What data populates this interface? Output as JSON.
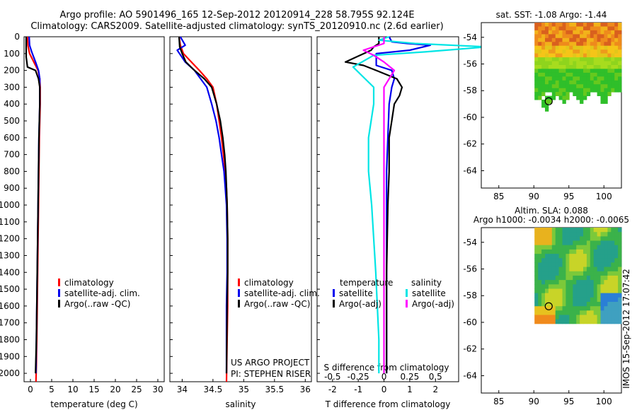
{
  "header": {
    "line1": "Argo profile: AO 5901496_165 12-Sep-2012 20120914_228 58.795S 92.124E",
    "line2": "Climatology: CARS2009. Satellite-adjusted climatology: synTS_20120910.nc (2.6d earlier)"
  },
  "depth_ticks": [
    "0",
    "100",
    "200",
    "300",
    "400",
    "500",
    "600",
    "700",
    "800",
    "900",
    "1000",
    "1100",
    "1200",
    "1300",
    "1400",
    "1500",
    "1600",
    "1700",
    "1800",
    "1900",
    "2000"
  ],
  "colors": {
    "climatology": "#ff0000",
    "satellite": "#0000ee",
    "argo": "#000000",
    "sat_salinity": "#00e5e5",
    "argo_salinity": "#ff00ff"
  },
  "chart_data": [
    {
      "id": "temperature",
      "type": "line",
      "xlabel": "temperature (deg C)",
      "xlim": [
        -1.5,
        31.5
      ],
      "ylim": [
        2050,
        0
      ],
      "xticks": [
        "0",
        "5",
        "10",
        "15",
        "20",
        "25",
        "30"
      ],
      "xtick_values": [
        0,
        5,
        10,
        15,
        20,
        25,
        30
      ],
      "legend": [
        "climatology",
        "satellite-adj. clim.",
        "Argo(..raw -QC)"
      ],
      "series": [
        {
          "name": "climatology",
          "color": "#ff0000",
          "x": [
            -0.7,
            -0.6,
            -0.2,
            0.8,
            1.8,
            2.2,
            2.3,
            2.3,
            2.2,
            2.1,
            2.0,
            1.9,
            1.8,
            1.7,
            1.6,
            1.5,
            1.4,
            1.3
          ],
          "y": [
            0,
            50,
            100,
            150,
            200,
            250,
            300,
            400,
            500,
            600,
            800,
            1000,
            1200,
            1400,
            1600,
            1800,
            1950,
            2050
          ]
        },
        {
          "name": "satellite-adj. clim.",
          "color": "#0000ee",
          "x": [
            -0.3,
            -0.2,
            0.3,
            1.2,
            1.9,
            2.2,
            2.2,
            2.2,
            2.1,
            2.0,
            1.9,
            1.8,
            1.7,
            1.6,
            1.5,
            1.4,
            1.3
          ],
          "y": [
            0,
            50,
            90,
            150,
            200,
            250,
            300,
            400,
            500,
            600,
            800,
            1000,
            1200,
            1400,
            1600,
            1800,
            2000
          ]
        },
        {
          "name": "Argo(..raw -QC)",
          "color": "#000000",
          "x": [
            -1.0,
            -1.0,
            -1.0,
            -0.7,
            1.2,
            1.9,
            2.2,
            2.2,
            2.1,
            2.0,
            1.9,
            1.8,
            1.7,
            1.6,
            1.5,
            1.4,
            1.2
          ],
          "y": [
            0,
            60,
            120,
            180,
            200,
            250,
            300,
            400,
            500,
            600,
            800,
            1000,
            1200,
            1400,
            1600,
            1800,
            2000
          ]
        }
      ]
    },
    {
      "id": "salinity",
      "type": "line",
      "xlabel": "salinity",
      "xlim": [
        33.8,
        36.1
      ],
      "ylim": [
        2050,
        0
      ],
      "xticks": [
        "34",
        "34.5",
        "35",
        "35.5",
        "36"
      ],
      "xtick_values": [
        34,
        34.5,
        35,
        35.5,
        36
      ],
      "legend": [
        "climatology",
        "satellite-adj. clim.",
        "Argo(..raw -QC)"
      ],
      "footer": [
        "US ARGO PROJECT",
        "PI: STEPHEN RISER"
      ],
      "series": [
        {
          "name": "climatology",
          "color": "#ff0000",
          "x": [
            33.95,
            33.97,
            34.02,
            34.15,
            34.28,
            34.4,
            34.5,
            34.56,
            34.6,
            34.64,
            34.67,
            34.7,
            34.72,
            34.73,
            34.74,
            34.74,
            34.74,
            34.73,
            34.72
          ],
          "y": [
            0,
            50,
            100,
            150,
            200,
            250,
            300,
            400,
            500,
            600,
            700,
            800,
            900,
            1000,
            1200,
            1400,
            1600,
            1800,
            2050
          ]
        },
        {
          "name": "satellite-adj. clim.",
          "color": "#0000ee",
          "x": [
            33.97,
            34.05,
            33.92,
            34.05,
            34.2,
            34.3,
            34.4,
            34.48,
            34.55,
            34.6,
            34.64,
            34.68,
            34.7,
            34.72,
            34.73,
            34.73,
            34.72,
            34.72
          ],
          "y": [
            0,
            50,
            80,
            150,
            200,
            250,
            300,
            400,
            500,
            600,
            700,
            800,
            900,
            1000,
            1200,
            1400,
            1600,
            2000
          ]
        },
        {
          "name": "Argo(..raw -QC)",
          "color": "#000000",
          "x": [
            33.95,
            33.96,
            34.0,
            34.06,
            34.2,
            34.36,
            34.48,
            34.56,
            34.62,
            34.66,
            34.69,
            34.71,
            34.72,
            34.73,
            34.74,
            34.74,
            34.73,
            34.72
          ],
          "y": [
            0,
            60,
            100,
            150,
            200,
            250,
            300,
            400,
            500,
            600,
            700,
            800,
            900,
            1000,
            1200,
            1400,
            1600,
            2000
          ]
        }
      ]
    },
    {
      "id": "difference",
      "type": "line",
      "xlabel": "T difference from climatology",
      "xlabel2": "S difference from climatology",
      "xlim": [
        -2.6,
        2.9
      ],
      "ylim": [
        2050,
        0
      ],
      "xticks": [
        "-2",
        "-1",
        "0",
        "1",
        "2"
      ],
      "xtick_values": [
        -2,
        -1,
        0,
        1,
        2
      ],
      "xticks_s": [
        "-0.5",
        "-0.25",
        "0",
        "0.25",
        "0.5"
      ],
      "xtick_s_values": [
        -0.5,
        -0.25,
        0,
        0.25,
        0.5
      ],
      "legend_titles": [
        "temperature",
        "salinity"
      ],
      "legend": [
        "satellite",
        "Argo(-adj)",
        "satellite",
        "Argo(-adj)"
      ],
      "series": [
        {
          "name": "satellite",
          "quantity": "temperature",
          "color": "#0000ee",
          "x": [
            0.2,
            0.3,
            0.9,
            1.8,
            1.0,
            -0.3,
            -0.3,
            0.3,
            0.4,
            0.3,
            0.2,
            0.15,
            0.1,
            0.1,
            0.1,
            0.1,
            0.1
          ],
          "y": [
            0,
            30,
            40,
            50,
            80,
            100,
            170,
            200,
            250,
            300,
            400,
            600,
            800,
            1000,
            1400,
            1800,
            2000
          ]
        },
        {
          "name": "Argo(-adj)",
          "quantity": "temperature",
          "color": "#000000",
          "x": [
            -0.2,
            -0.2,
            -0.4,
            -0.5,
            -1.5,
            -0.8,
            -0.3,
            0.5,
            0.7,
            0.6,
            0.4,
            0.3,
            0.2,
            0.2,
            0.15,
            0.1,
            0.1
          ],
          "y": [
            0,
            40,
            60,
            80,
            150,
            170,
            200,
            250,
            300,
            350,
            400,
            500,
            600,
            800,
            1000,
            1400,
            2000
          ]
        },
        {
          "name": "satellite",
          "quantity": "salinity",
          "color": "#00e5e5",
          "x": [
            0.05,
            -0.05,
            0.3,
            1.0,
            0.4,
            -0.1,
            -0.3,
            -0.1,
            -0.1,
            -0.15,
            -0.15,
            -0.12,
            -0.1,
            -0.08,
            -0.05,
            -0.05
          ],
          "y": [
            0,
            20,
            40,
            60,
            90,
            110,
            180,
            300,
            400,
            600,
            800,
            1000,
            1200,
            1400,
            1800,
            2000
          ]
        },
        {
          "name": "Argo(-adj)",
          "quantity": "salinity",
          "color": "#ff00ff",
          "x": [
            0.0,
            0.0,
            -0.2,
            -0.1,
            0.0,
            0.1,
            0.0,
            0.0,
            0.0,
            0.0,
            0.0
          ],
          "y": [
            0,
            40,
            80,
            110,
            150,
            200,
            300,
            600,
            1000,
            1500,
            2000
          ]
        }
      ]
    }
  ],
  "maps": {
    "lon_ticks": [
      "85",
      "90",
      "95",
      "100"
    ],
    "lon_tick_values": [
      85,
      90,
      95,
      100
    ],
    "lon_range": [
      82.5,
      102.5
    ],
    "lat_ticks": [
      "-54",
      "-56",
      "-58",
      "-60",
      "-62",
      "-64"
    ],
    "lat_tick_values": [
      -54,
      -56,
      -58,
      -60,
      -62,
      -64
    ],
    "lat_range": [
      -65.3,
      -52.9
    ],
    "argo_position": {
      "lon": 92.124,
      "lat": -58.795
    },
    "sst": {
      "title": "sat. SST: -1.08 Argo: -1.44"
    },
    "sla": {
      "title1": "Altim. SLA: 0.088",
      "title2": "Argo h1000: -0.0034 h2000: -0.0065"
    }
  },
  "stamp": "IMOS 15-Sep-2012 17:07:42"
}
